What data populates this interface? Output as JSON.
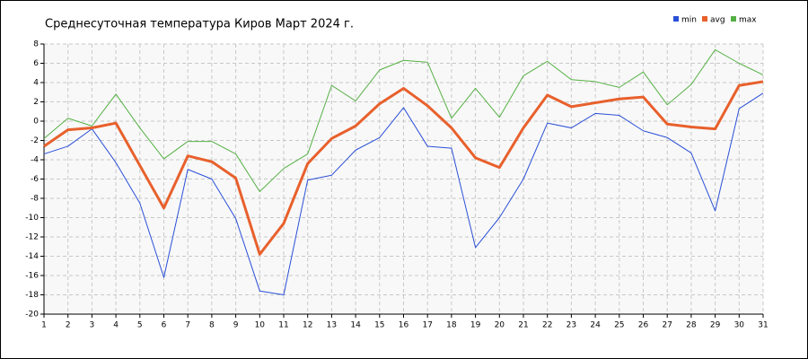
{
  "chart_data": {
    "type": "line",
    "title": "Среднесуточная температура Киров  Март 2024 г.",
    "x": [
      1,
      2,
      3,
      4,
      5,
      6,
      7,
      8,
      9,
      10,
      11,
      12,
      13,
      14,
      15,
      16,
      17,
      18,
      19,
      20,
      21,
      22,
      23,
      24,
      25,
      26,
      27,
      28,
      29,
      30,
      31
    ],
    "series": [
      {
        "name": "min",
        "color": "#2a4fd8",
        "width": 1,
        "values": [
          -3.4,
          -2.6,
          -0.8,
          -4.3,
          -8.5,
          -16.2,
          -5.0,
          -6.0,
          -10.1,
          -17.6,
          -18.0,
          -6.1,
          -5.6,
          -3.0,
          -1.7,
          1.4,
          -2.6,
          -2.8,
          -13.1,
          -10.0,
          -6.0,
          -0.2,
          -0.7,
          0.8,
          0.6,
          -1.0,
          -1.7,
          -3.3,
          -9.3,
          1.3,
          2.9
        ]
      },
      {
        "name": "avg",
        "color": "#e8602c",
        "width": 3,
        "values": [
          -2.6,
          -0.9,
          -0.7,
          -0.2,
          -4.6,
          -9.0,
          -3.6,
          -4.2,
          -5.9,
          -13.8,
          -10.6,
          -4.4,
          -1.8,
          -0.5,
          1.8,
          3.4,
          1.6,
          -0.7,
          -3.8,
          -4.8,
          -0.7,
          2.7,
          1.5,
          1.9,
          2.3,
          2.5,
          -0.3,
          -0.6,
          -0.8,
          3.7,
          4.1
        ]
      },
      {
        "name": "max",
        "color": "#55b044",
        "width": 1,
        "values": [
          -1.8,
          0.3,
          -0.5,
          2.8,
          -0.7,
          -3.9,
          -2.1,
          -2.1,
          -3.4,
          -7.3,
          -4.9,
          -3.4,
          3.7,
          2.1,
          5.3,
          6.3,
          6.1,
          0.3,
          3.4,
          0.4,
          4.7,
          6.2,
          4.3,
          4.1,
          3.5,
          5.1,
          1.7,
          3.8,
          7.4,
          6.0,
          4.8
        ]
      }
    ],
    "xlim": [
      1,
      31
    ],
    "xticks": [
      1,
      2,
      3,
      4,
      5,
      6,
      7,
      8,
      9,
      10,
      11,
      12,
      13,
      14,
      15,
      16,
      17,
      18,
      19,
      20,
      21,
      22,
      23,
      24,
      25,
      26,
      27,
      28,
      29,
      30,
      31
    ],
    "ylim": [
      -20,
      8
    ],
    "yticks": [
      -20,
      -18,
      -16,
      -14,
      -12,
      -10,
      -8,
      -6,
      -4,
      -2,
      0,
      2,
      4,
      6,
      8
    ],
    "grid": true,
    "legend": "top-right"
  }
}
